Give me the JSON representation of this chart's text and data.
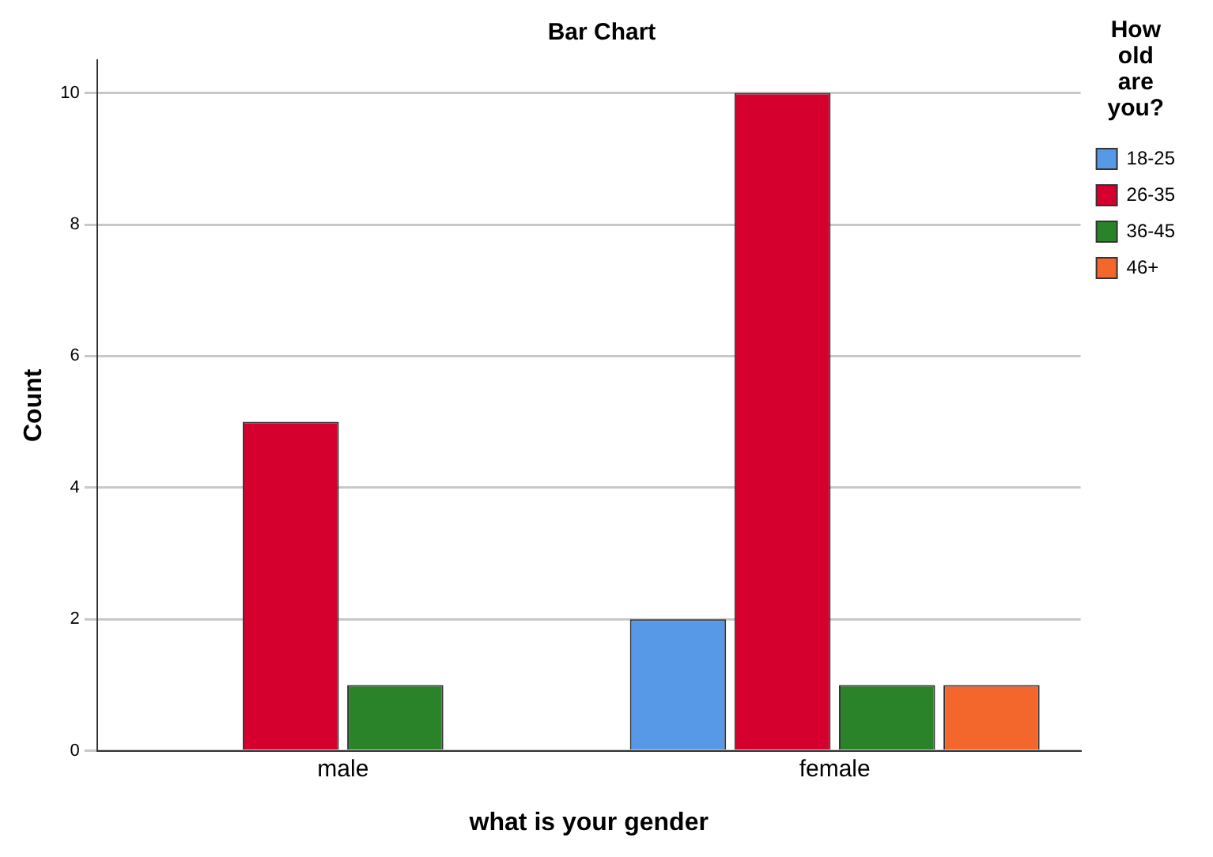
{
  "chart_data": {
    "type": "bar",
    "title": "Bar Chart",
    "xlabel": "what is your gender",
    "ylabel": "Count",
    "legend_title": "How old are you?",
    "categories": [
      "male",
      "female"
    ],
    "series": [
      {
        "name": "18-25",
        "color": "#5799e6",
        "values": [
          null,
          2
        ]
      },
      {
        "name": "26-35",
        "color": "#d5002e",
        "values": [
          5,
          10
        ]
      },
      {
        "name": "36-45",
        "color": "#2a8229",
        "values": [
          1,
          1
        ]
      },
      {
        "name": "46+",
        "color": "#f3672c",
        "values": [
          null,
          1
        ]
      }
    ],
    "ylim": [
      0,
      10.5
    ],
    "yticks": [
      0,
      2,
      4,
      6,
      8,
      10
    ],
    "grid": "y",
    "legend": "top right"
  }
}
